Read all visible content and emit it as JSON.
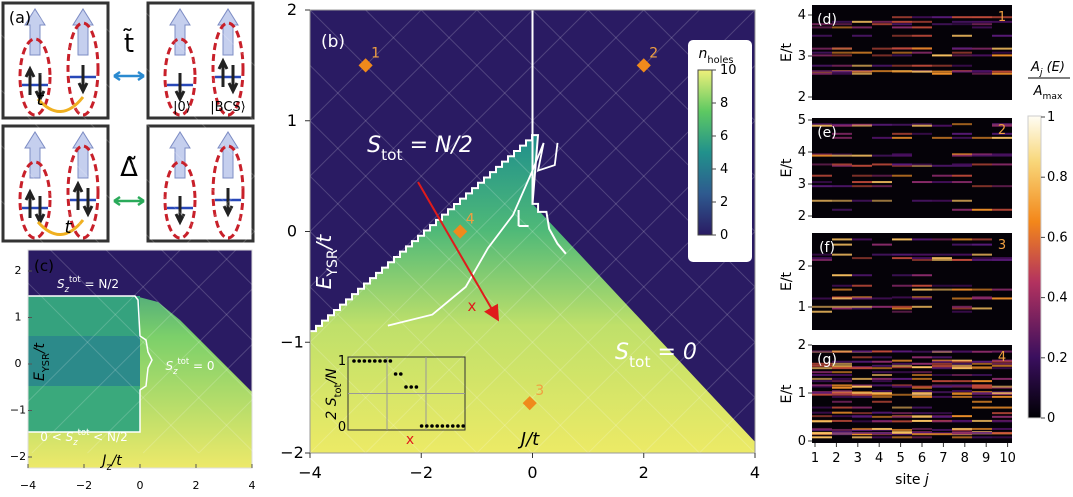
{
  "panel_a": {
    "label": "(a)",
    "t_top": "t",
    "t_bottom": "t",
    "t_tilde": "t̃",
    "delta_tilde": "Δ̃",
    "ket_zero": "|0⟩",
    "ket_bcs": "|BCS⟩"
  },
  "panel_b": {
    "label": "(b)",
    "xticks": [
      "−4",
      "−2",
      "0",
      "2",
      "4"
    ],
    "yticks": [
      "2",
      "1",
      "0",
      "−1",
      "−2"
    ],
    "ylabel": {
      "main": "E",
      "sub": "YSR",
      "rest": "/t"
    },
    "xlabel": {
      "main": "J",
      "rest": "/t"
    },
    "region_high": {
      "main": "S",
      "sub": "tot",
      "rest": " = N/2"
    },
    "region_zero": {
      "main": "S",
      "sub": "tot",
      "rest": " = 0"
    },
    "points": [
      "1",
      "2",
      "3",
      "4"
    ],
    "cut_label": "x",
    "colorbar": {
      "title": "n",
      "title_sub": "holes",
      "ticks": [
        "10",
        "8",
        "6",
        "4",
        "2",
        "0"
      ]
    },
    "inset": {
      "ylabel": {
        "main": "2 S",
        "sub": "tot",
        "rest": "/N"
      },
      "yticks": [
        "1",
        "0"
      ],
      "xlabel": "x"
    }
  },
  "panel_c": {
    "label": "(c)",
    "xticks": [
      "−4",
      "−2",
      "0",
      "2",
      "4"
    ],
    "yticks": [
      "2",
      "1",
      "0",
      "−1",
      "−2"
    ],
    "ylabel": {
      "main": "E",
      "sub": "YSR",
      "rest": "/t"
    },
    "xlabel": {
      "main": "J",
      "sub": "z",
      "rest": "/t"
    },
    "region_top": {
      "main": "S",
      "sub": "z",
      "sup": "tot",
      "rest": " = N/2"
    },
    "region_right": {
      "main": "S",
      "sub": "z",
      "sup": "tot",
      "rest": " = 0"
    },
    "region_mid": {
      "pre": "0 < ",
      "main": "S",
      "sub": "z",
      "sup": "tot",
      "rest": " < N/2"
    }
  },
  "spectra": {
    "panels": [
      {
        "label": "(d)",
        "point": "1",
        "yticks": [
          "4",
          "3",
          "2"
        ]
      },
      {
        "label": "(e)",
        "point": "2",
        "yticks": [
          "5",
          "4",
          "3",
          "2"
        ]
      },
      {
        "label": "(f)",
        "point": "3",
        "yticks": [
          "2",
          "1"
        ]
      },
      {
        "label": "(g)",
        "point": "4",
        "yticks": [
          "2",
          "1",
          "0"
        ]
      }
    ],
    "ylabel": "E/t",
    "xticks": [
      "1",
      "2",
      "3",
      "4",
      "5",
      "6",
      "7",
      "8",
      "9",
      "10"
    ],
    "xlabel": {
      "main": "site ",
      "var": "j"
    },
    "colorbar": {
      "num_main": "A",
      "num_sub": "j",
      "num_rest": " (E)",
      "den_main": "A",
      "den_sub": "max",
      "ticks": [
        "1",
        "0.8",
        "0.6",
        "0.4",
        "0.2",
        "0"
      ]
    }
  }
}
